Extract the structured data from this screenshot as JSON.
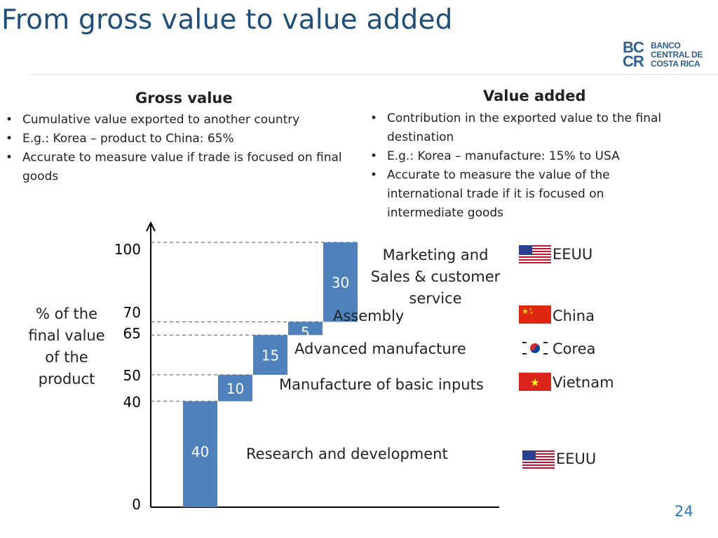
{
  "slide": {
    "title": "From gross value to value added",
    "page_number": "24"
  },
  "logo": {
    "mark": "BC\nCR",
    "text": "BANCO\nCENTRAL DE\nCOSTA RICA"
  },
  "gross_value": {
    "heading": "Gross value",
    "bullets": [
      "Cumulative value exported to another country",
      "E.g.: Korea – product to China: 65%",
      "Accurate to measure value if trade is focused on final goods"
    ]
  },
  "value_added": {
    "heading": "Value added",
    "bullets": [
      "Contribution in the  exported value to the final destination",
      "E.g.: Korea – manufacture: 15%  to USA",
      "Accurate  to measure the value of  the international trade if it is focused on intermediate goods"
    ]
  },
  "chart_data": {
    "type": "bar",
    "subtype": "waterfall",
    "ylabel": "% of the final value of the product",
    "ylim": [
      0,
      100
    ],
    "y_ticks": [
      "0",
      "40",
      "50",
      "65",
      "70",
      "100"
    ],
    "grid": false,
    "bar_color": "#4f81bd",
    "categories": [
      "Research and development",
      "Manufacture of basic inputs",
      "Advanced manufacture",
      "Assembly",
      "Marketing and Sales & customer service"
    ],
    "values": [
      40,
      10,
      15,
      5,
      30
    ],
    "bar_labels": [
      "40",
      "10",
      "15",
      "5",
      "30"
    ],
    "cumulative_tops": [
      40,
      50,
      65,
      70,
      100
    ],
    "countries": [
      "EEUU",
      "Vietnam",
      "Corea",
      "China",
      "EEUU"
    ],
    "country_flags": [
      "us-flag-icon",
      "vietnam-flag-icon",
      "korea-flag-icon",
      "china-flag-icon",
      "us-flag-icon"
    ]
  }
}
